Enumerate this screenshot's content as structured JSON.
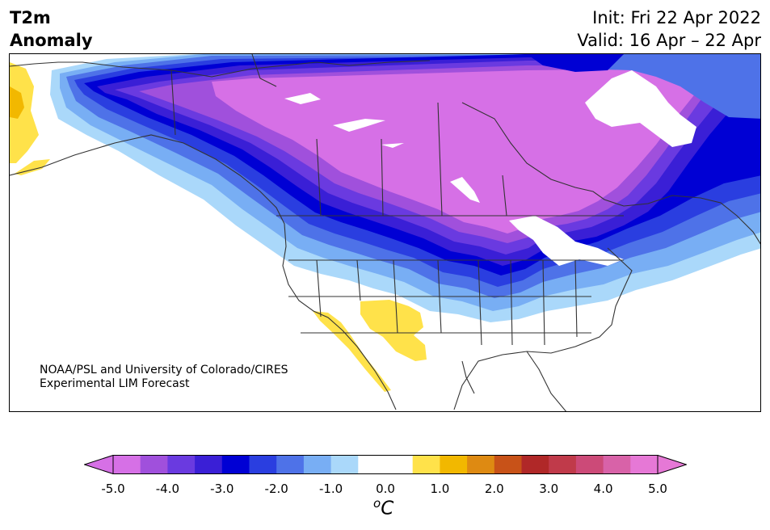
{
  "header": {
    "title_line1": "T2m",
    "title_line2": "Anomaly",
    "init_text": "Init: Fri 22 Apr 2022",
    "valid_text": "Valid: 16 Apr – 22 Apr"
  },
  "credit": {
    "line1": "NOAA/PSL and University of Colorado/CIRES",
    "line2": "Experimental LIM Forecast"
  },
  "colorbar": {
    "unit_base": "C",
    "unit_super": "o",
    "ticks": [
      "-5.0",
      "-4.0",
      "-3.0",
      "-2.0",
      "-1.0",
      "0.0",
      "1.0",
      "2.0",
      "3.0",
      "4.0",
      "5.0"
    ],
    "levels": [
      -5.0,
      -4.5,
      -4.0,
      -3.5,
      -3.0,
      -2.5,
      -2.0,
      -1.5,
      -1.0,
      -0.5,
      0.5,
      1.0,
      1.5,
      2.0,
      2.5,
      3.0,
      3.5,
      4.0,
      4.5,
      5.0
    ],
    "colors": [
      "#d670e6",
      "#a050dc",
      "#6a3ae0",
      "#3a1fd6",
      "#0000d4",
      "#2a3ee0",
      "#4e72e8",
      "#78aef4",
      "#aad8fa",
      "#ffffff",
      "#ffe24a",
      "#f2b800",
      "#de8a12",
      "#c85218",
      "#b02828",
      "#c03a4a",
      "#cc4a78",
      "#d862a8",
      "#e678d6"
    ],
    "under_color": "#d670e6",
    "over_color": "#e678d6"
  },
  "map": {
    "colors": {
      "c5": "#d670e6",
      "c45": "#a050dc",
      "c4": "#6a3ae0",
      "c35": "#3a1fd6",
      "c3": "#0000d4",
      "c25": "#2a3ee0",
      "c2": "#4e72e8",
      "c15": "#78aef4",
      "c1": "#aad8fa",
      "warm1": "#ffe24a",
      "warm2": "#f2b800",
      "coast": "#333333"
    }
  }
}
